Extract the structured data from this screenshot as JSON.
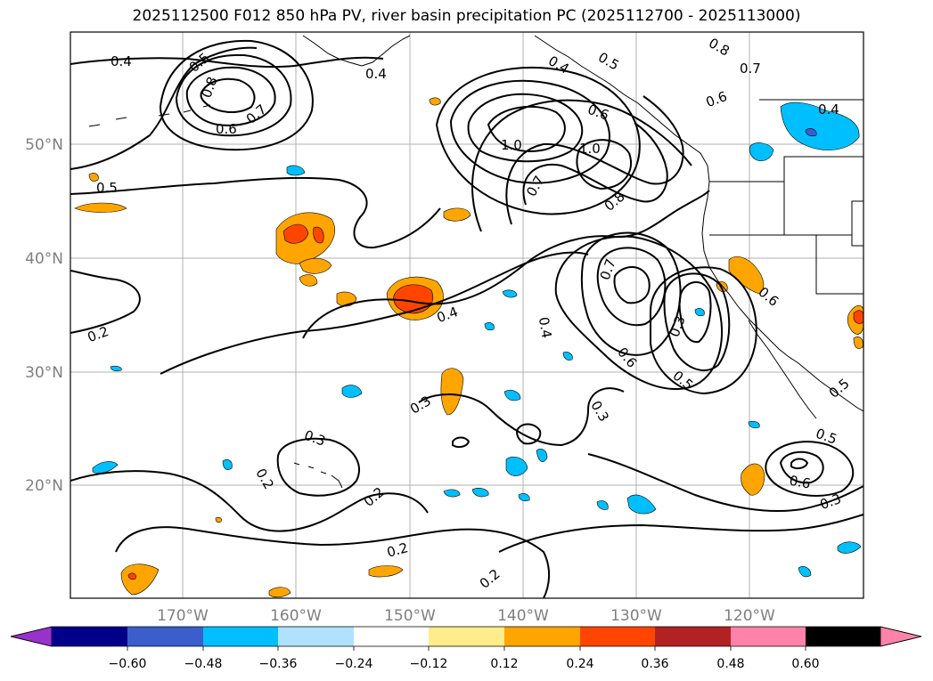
{
  "title": "2025112500 F012 850 hPa PV, river basin precipitation PC (2025112700 - 2025113000)",
  "map": {
    "lat_labels": [
      {
        "label": "50°N",
        "lat": 50
      },
      {
        "label": "40°N",
        "lat": 40
      },
      {
        "label": "30°N",
        "lat": 30
      },
      {
        "label": "20°N",
        "lat": 20
      }
    ],
    "lon_labels": [
      {
        "label": "170°W",
        "lon": -170
      },
      {
        "label": "160°W",
        "lon": -160
      },
      {
        "label": "150°W",
        "lon": -150
      },
      {
        "label": "140°W",
        "lon": -140
      },
      {
        "label": "130°W",
        "lon": -130
      },
      {
        "label": "120°W",
        "lon": -120
      }
    ],
    "contour_labels": [
      "0.4",
      "0.5",
      "0.8",
      "0.7",
      "0.6",
      "0.4",
      "0.5",
      "0.4",
      "0.5",
      "0.6",
      "0.8",
      "0.7",
      "0.6",
      "0.4",
      "1.0",
      "1.0",
      "0.7",
      "0.8",
      "0.7",
      "0.6",
      "0.5",
      "0.4",
      "0.3",
      "0.6",
      "0.4",
      "0.2",
      "0.3",
      "0.3",
      "0.3",
      "0.2",
      "0.2",
      "0.2",
      "0.2",
      "0.5",
      "0.6",
      "0.3",
      "0.5"
    ]
  },
  "colorbar": {
    "colors": [
      "#9932cc",
      "#00008b",
      "#3a5fcd",
      "#00bfff",
      "#b0e2ff",
      "#ffffff",
      "#ffec8b",
      "#ffa500",
      "#ff4500",
      "#b22222",
      "#ff82ab"
    ],
    "ticks": [
      "−0.60",
      "−0.48",
      "−0.36",
      "−0.24",
      "−0.12",
      "0.12",
      "0.24",
      "0.36",
      "0.48",
      "0.60"
    ]
  }
}
